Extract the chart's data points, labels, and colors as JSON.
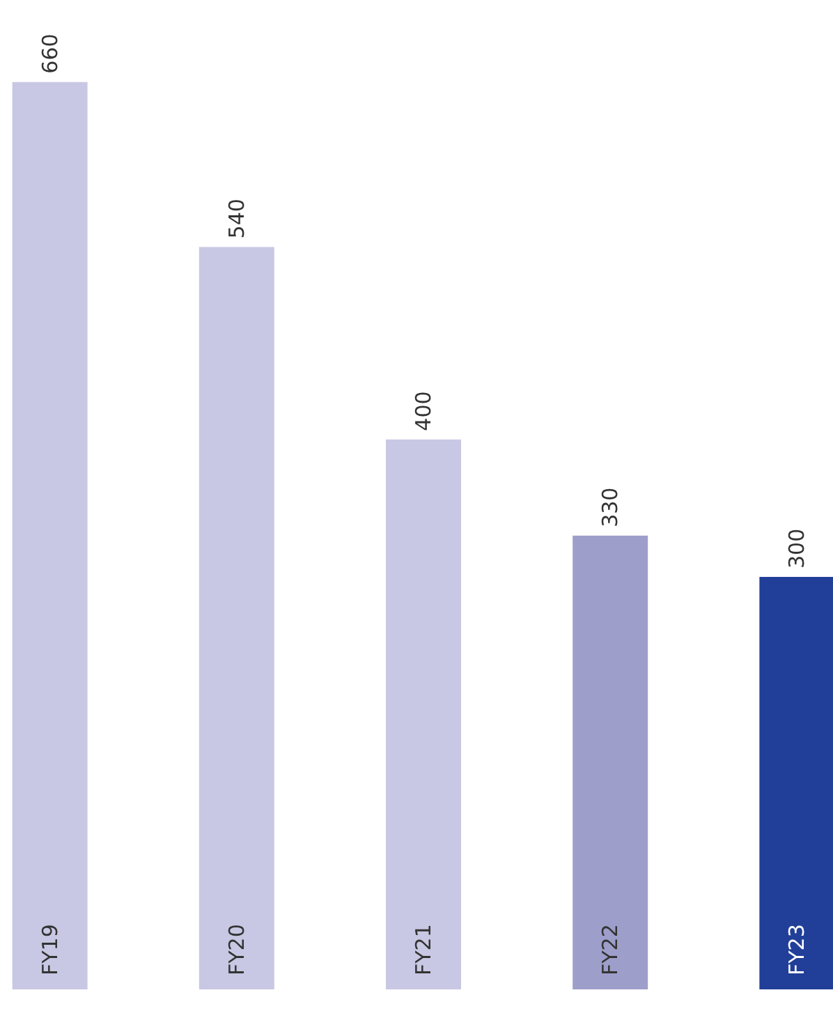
{
  "chart_data": {
    "type": "bar",
    "categories": [
      "FY19",
      "FY20",
      "FY21",
      "FY22",
      "FY23"
    ],
    "values": [
      660,
      540,
      400,
      330,
      300
    ],
    "colors": [
      "#c8c8e4",
      "#c8c8e4",
      "#c8c8e4",
      "#9e9ecb",
      "#213f99"
    ],
    "data_labels": true
  }
}
